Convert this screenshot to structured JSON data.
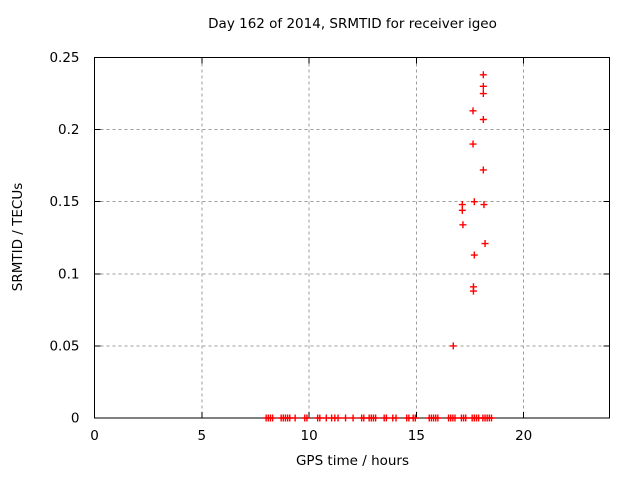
{
  "chart_data": {
    "type": "scatter",
    "title": "Day 162 of 2014, SRMTID for receiver igeo",
    "xlabel": "GPS time / hours",
    "ylabel": "SRMTID / TECUs",
    "xlim": [
      0,
      24
    ],
    "ylim": [
      0,
      0.25
    ],
    "xticks": [
      0,
      5,
      10,
      15,
      20
    ],
    "xtick_labels": [
      "0",
      "5",
      "10",
      "15",
      "20"
    ],
    "yticks": [
      0,
      0.05,
      0.1,
      0.15,
      0.2,
      0.25
    ],
    "ytick_labels": [
      "0",
      "0.05",
      "0.1",
      "0.15",
      "0.2",
      "0.25"
    ],
    "grid": true,
    "grid_color": "#9e9e9e",
    "axis_color": "#000000",
    "legend": "none",
    "series": [
      {
        "name": "SRMTID",
        "marker": "plus",
        "color": "#ff0000",
        "points": [
          [
            16.72,
            0.05
          ],
          [
            17.14,
            0.148
          ],
          [
            17.14,
            0.144
          ],
          [
            17.17,
            0.134
          ],
          [
            17.64,
            0.213
          ],
          [
            17.64,
            0.19
          ],
          [
            17.66,
            0.091
          ],
          [
            17.66,
            0.088
          ],
          [
            17.7,
            0.15
          ],
          [
            17.7,
            0.113
          ],
          [
            18.12,
            0.238
          ],
          [
            18.12,
            0.23
          ],
          [
            18.12,
            0.225
          ],
          [
            18.12,
            0.207
          ],
          [
            18.12,
            0.172
          ],
          [
            18.15,
            0.148
          ],
          [
            18.2,
            0.121
          ]
        ],
        "zero_points_x": [
          8.0,
          8.1,
          8.2,
          8.3,
          8.7,
          8.8,
          8.9,
          9.0,
          9.1,
          9.35,
          9.8,
          9.9,
          10.4,
          10.5,
          10.8,
          11.05,
          11.2,
          11.35,
          11.7,
          12.05,
          12.45,
          12.55,
          12.8,
          12.9,
          13.0,
          13.1,
          13.5,
          13.6,
          13.9,
          14.05,
          14.55,
          14.65,
          14.85,
          14.95,
          15.6,
          15.7,
          15.8,
          15.9,
          16.0,
          16.5,
          16.6,
          16.7,
          16.8,
          17.1,
          17.2,
          17.3,
          17.6,
          17.7,
          17.8,
          17.9,
          18.1,
          18.2,
          18.3,
          18.4,
          18.5
        ]
      }
    ]
  }
}
